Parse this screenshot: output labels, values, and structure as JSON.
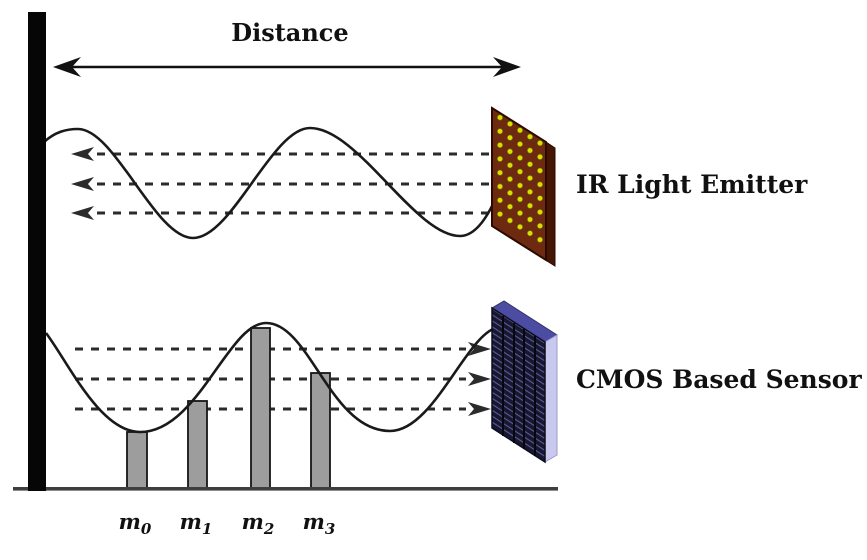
{
  "diagram": {
    "distance_label": "Distance",
    "emitter_label": "IR Light Emitter",
    "sensor_label": "CMOS Based Sensor",
    "measurements": [
      {
        "base": "m",
        "sub": "0"
      },
      {
        "base": "m",
        "sub": "1"
      },
      {
        "base": "m",
        "sub": "2"
      },
      {
        "base": "m",
        "sub": "3"
      }
    ]
  },
  "colors": {
    "wave": "#1a1a1a",
    "dashed_ray": "#2b2b2b",
    "wall": "#060606",
    "ground_line": "#3f3f3f",
    "bar_fill": "#9d9d9d",
    "bar_stroke": "#161616",
    "emitter_face": "#6e2a10",
    "emitter_side": "#451505",
    "emitter_bottom": "#380f03",
    "emitter_outline": "#2b0a01",
    "emitter_led": "#d8de00",
    "sensor_face": "#17172f",
    "sensor_hatch": "#5c5c99",
    "sensor_top": "#4c4ca3",
    "sensor_side": "#c9c9ef",
    "text": "#111111"
  }
}
